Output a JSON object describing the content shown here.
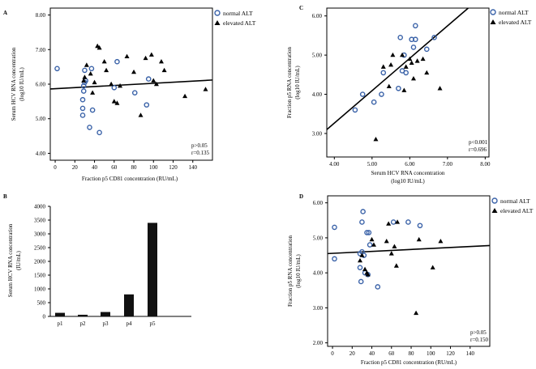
{
  "chart_data": [
    {
      "panel": "A",
      "type": "scatter",
      "xlabel": "Fraction p5 CD81 concentration (RU/mL)",
      "ylabel": [
        "Serum HCV RNA concentration",
        "(log10 IU/mL)"
      ],
      "xlim": [
        -5,
        160
      ],
      "ylim": [
        3.8,
        8.2
      ],
      "xticks": [
        "0",
        "20",
        "40",
        "60",
        "80",
        "100",
        "120",
        "140"
      ],
      "xtick_values": [
        0,
        20,
        40,
        60,
        80,
        100,
        120,
        140
      ],
      "yticks": [
        "4.00",
        "5.00",
        "6.00",
        "7.00",
        "8.00"
      ],
      "ytick_values": [
        4,
        5,
        6,
        7,
        8
      ],
      "legend": [
        "normal ALT",
        "elevated ALT"
      ],
      "stats": [
        "p>0.05",
        "r=0.135"
      ],
      "fit_line": {
        "x": [
          -5,
          160
        ],
        "y": [
          5.86,
          6.12
        ]
      },
      "series": [
        {
          "name": "normal ALT",
          "marker": "circle",
          "x": [
            2,
            28,
            28,
            28,
            29,
            29,
            30,
            30,
            31,
            35,
            37,
            38,
            45,
            63,
            60,
            81,
            93,
            95
          ],
          "y": [
            6.45,
            5.1,
            5.3,
            5.55,
            5.8,
            5.95,
            6.05,
            6.4,
            6.1,
            4.75,
            6.45,
            5.25,
            4.6,
            6.65,
            5.9,
            5.75,
            5.4,
            6.15
          ]
        },
        {
          "name": "elevated ALT",
          "marker": "triangle",
          "x": [
            29,
            30,
            32,
            36,
            38,
            40,
            43,
            45,
            50,
            52,
            57,
            60,
            63,
            66,
            73,
            80,
            87,
            92,
            98,
            100,
            103,
            108,
            111,
            132,
            153
          ],
          "y": [
            6.1,
            6.2,
            6.55,
            6.3,
            5.75,
            6.05,
            7.1,
            7.05,
            6.65,
            6.4,
            6.0,
            5.5,
            5.45,
            5.95,
            6.8,
            6.35,
            5.1,
            6.75,
            6.85,
            6.1,
            6.0,
            6.65,
            6.4,
            5.65,
            5.85
          ]
        }
      ]
    },
    {
      "panel": "B",
      "type": "bar",
      "categories": [
        "p1",
        "p2",
        "p3",
        "p4",
        "p5"
      ],
      "values": [
        130,
        60,
        160,
        800,
        3400
      ],
      "ylabel": [
        "Serum HCV RNA concentration",
        "(IU/mL)"
      ],
      "ylim": [
        0,
        4000
      ],
      "yticks": [
        "0",
        "500",
        "1000",
        "1500",
        "2000",
        "2500",
        "3000",
        "3500",
        "4000"
      ],
      "ytick_values": [
        0,
        500,
        1000,
        1500,
        2000,
        2500,
        3000,
        3500,
        4000
      ]
    },
    {
      "panel": "C",
      "type": "scatter",
      "xlabel": [
        "Serum HCV RNA concentration",
        "(log10 IU/mL)"
      ],
      "ylabel": [
        "Fraction p5 RNA concentration",
        "(log10 IU/mL)"
      ],
      "xlim": [
        3.8,
        8.1
      ],
      "ylim": [
        2.4,
        6.2
      ],
      "xticks": [
        "4.00",
        "5.00",
        "6.00",
        "7.00",
        "8.00"
      ],
      "xtick_values": [
        4,
        5,
        6,
        7,
        8
      ],
      "yticks": [
        "3.00",
        "4.00",
        "5.00",
        "6.00"
      ],
      "ytick_values": [
        3,
        4,
        5,
        6
      ],
      "legend": [
        "normal ALT",
        "elevated ALT"
      ],
      "stats": [
        "p<0.001",
        "r=0.696"
      ],
      "fit_line": {
        "x": [
          3.8,
          7.55
        ],
        "y": [
          3.1,
          6.2
        ]
      },
      "series": [
        {
          "name": "normal ALT",
          "marker": "circle",
          "x": [
            4.55,
            4.75,
            5.05,
            5.25,
            5.3,
            5.7,
            5.75,
            5.8,
            5.85,
            5.9,
            6.05,
            6.1,
            6.15,
            6.15,
            6.45,
            6.65
          ],
          "y": [
            3.6,
            4.0,
            3.8,
            4.0,
            4.55,
            4.15,
            5.45,
            4.6,
            5.0,
            4.55,
            5.4,
            5.2,
            5.75,
            5.4,
            5.15,
            5.45
          ]
        },
        {
          "name": "elevated ALT",
          "marker": "triangle",
          "x": [
            5.1,
            5.3,
            5.45,
            5.5,
            5.55,
            5.8,
            5.85,
            5.9,
            6.0,
            6.05,
            6.1,
            6.2,
            6.35,
            6.45,
            6.8
          ],
          "y": [
            2.85,
            4.7,
            4.2,
            4.75,
            5.0,
            5.0,
            4.1,
            4.7,
            4.9,
            4.8,
            4.4,
            4.85,
            4.9,
            4.55,
            4.15
          ]
        }
      ]
    },
    {
      "panel": "D",
      "type": "scatter",
      "xlabel": "Fraction p5 CD81 concentration (RU/mL)",
      "ylabel": [
        "Fraction p5 RNA concentration",
        "(log10 IU/mL)"
      ],
      "xlim": [
        -5,
        160
      ],
      "ylim": [
        1.9,
        6.2
      ],
      "xticks": [
        "0",
        "20",
        "40",
        "60",
        "80",
        "100",
        "120",
        "140"
      ],
      "xtick_values": [
        0,
        20,
        40,
        60,
        80,
        100,
        120,
        140
      ],
      "yticks": [
        "2.00",
        "3.00",
        "4.00",
        "5.00",
        "6.00"
      ],
      "ytick_values": [
        2,
        3,
        4,
        5,
        6
      ],
      "legend": [
        "normal ALT",
        "elevated ALT"
      ],
      "stats": [
        "p>0.05",
        "r=0.150"
      ],
      "fit_line": {
        "x": [
          -5,
          160
        ],
        "y": [
          4.55,
          4.78
        ]
      },
      "series": [
        {
          "name": "normal ALT",
          "marker": "circle",
          "x": [
            2,
            2,
            28,
            28,
            29,
            30,
            30,
            31,
            32,
            33,
            35,
            36,
            37,
            38,
            46,
            62,
            77,
            89
          ],
          "y": [
            5.3,
            4.4,
            4.55,
            4.15,
            3.75,
            4.6,
            5.45,
            5.75,
            4.5,
            4.0,
            5.15,
            3.95,
            5.15,
            4.8,
            3.6,
            5.45,
            5.45,
            5.35
          ]
        },
        {
          "name": "elevated ALT",
          "marker": "triangle",
          "x": [
            28,
            30,
            33,
            35,
            36,
            40,
            42,
            55,
            57,
            60,
            63,
            65,
            66,
            85,
            88,
            102,
            110
          ],
          "y": [
            4.35,
            4.5,
            4.1,
            4.0,
            3.95,
            4.95,
            4.8,
            4.9,
            5.4,
            4.55,
            4.75,
            4.2,
            5.45,
            2.85,
            4.95,
            4.15,
            4.9
          ]
        }
      ]
    }
  ]
}
